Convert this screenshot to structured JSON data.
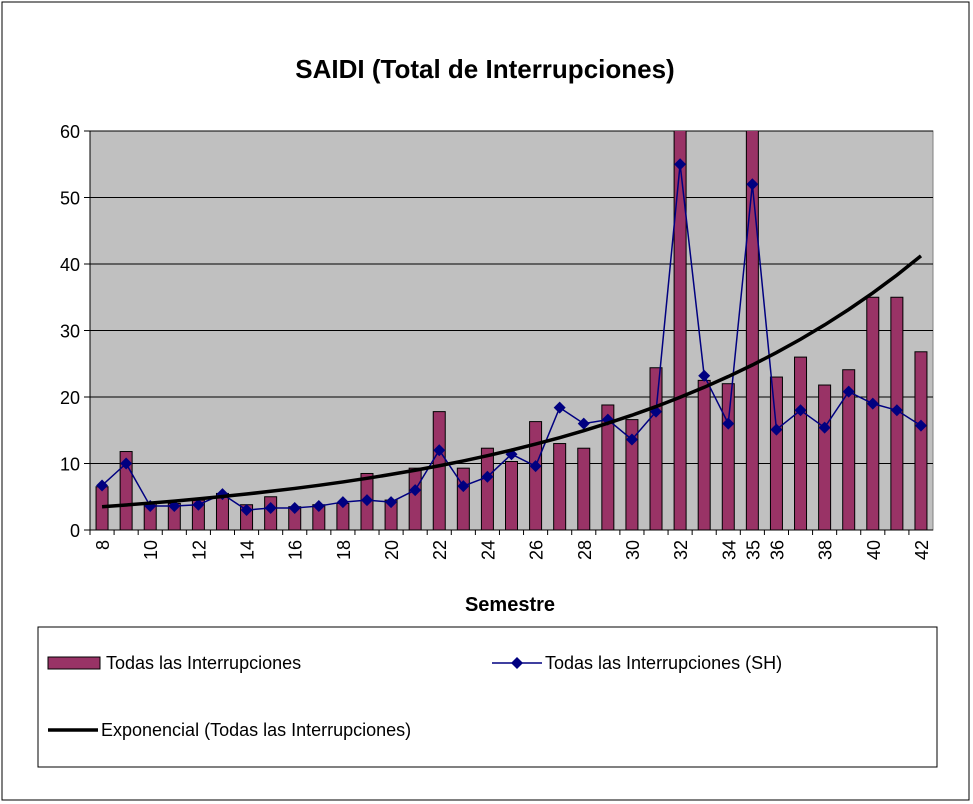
{
  "chart_data": {
    "type": "bar-line",
    "title": "SAIDI (Total de Interrupciones)",
    "x_label": "Semestre",
    "categories": [
      "8",
      null,
      "10",
      null,
      "12",
      null,
      "14",
      null,
      "16",
      null,
      "18",
      null,
      "20",
      null,
      "22",
      null,
      "24",
      null,
      "26",
      null,
      "28",
      null,
      "30",
      null,
      "32",
      null,
      "34",
      "35",
      "36",
      null,
      "38",
      null,
      "40",
      null,
      "42"
    ],
    "series": [
      {
        "name": "Todas las Interrupciones",
        "type": "bar",
        "color": "#993366",
        "values": [
          6.5,
          11.8,
          4,
          4,
          4.5,
          5.5,
          3.8,
          5,
          3.5,
          3.8,
          4,
          8.5,
          4.5,
          9.3,
          17.8,
          9.3,
          12.3,
          10.3,
          16.3,
          13,
          12.3,
          18.8,
          16.6,
          24.4,
          62,
          22.5,
          22,
          62,
          23,
          26,
          21.8,
          24.1,
          35,
          35,
          26.8
        ]
      },
      {
        "name": "Todas las Interrupciones (SH)",
        "type": "line",
        "color": "#000080",
        "marker": "diamond",
        "values": [
          6.7,
          10,
          3.6,
          3.6,
          3.8,
          5.4,
          3,
          3.3,
          3.3,
          3.6,
          4.2,
          4.5,
          4.2,
          6,
          12,
          6.6,
          8,
          11.4,
          9.6,
          18.4,
          16,
          16.6,
          13.6,
          17.8,
          55,
          23.2,
          16,
          52,
          15.1,
          18,
          15.4,
          20.8,
          19,
          18,
          15.7
        ]
      },
      {
        "name": "Exponencial (Todas las Interrupciones)",
        "type": "line",
        "color": "#000000",
        "values": [
          3.5,
          3.76,
          4.05,
          4.35,
          4.68,
          5.03,
          5.41,
          5.82,
          6.25,
          6.72,
          7.23,
          7.77,
          8.36,
          8.99,
          9.66,
          10.39,
          11.17,
          12.01,
          12.92,
          13.89,
          14.93,
          16.06,
          17.26,
          18.56,
          19.96,
          21.46,
          23.08,
          24.81,
          26.68,
          28.68,
          30.84,
          33.16,
          35.65,
          38.33,
          41.22
        ]
      }
    ],
    "ylim": [
      0,
      60
    ],
    "yticks": [
      0,
      10,
      20,
      30,
      40,
      50,
      60
    ],
    "grid": true,
    "legend": "bottom"
  }
}
